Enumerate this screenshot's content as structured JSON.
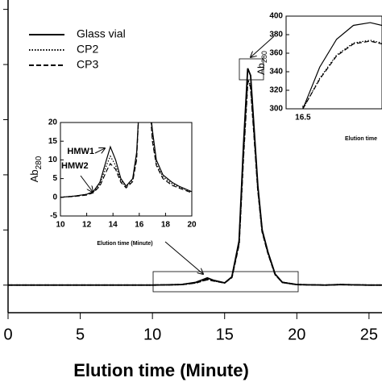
{
  "chart_data": [
    {
      "type": "line",
      "x_label": "Elution time (Minute)",
      "x": [
        0,
        5,
        10,
        12,
        13,
        13.5,
        13.8,
        14.2,
        15,
        15.5,
        16,
        16.3,
        16.6,
        16.8,
        17,
        17.3,
        17.6,
        18,
        18.5,
        19,
        20,
        22,
        23,
        25,
        25.9
      ],
      "series": [
        {
          "name": "Glass vial",
          "color": "#000000",
          "dash": "solid",
          "values": [
            0,
            0,
            0,
            1,
            5,
            10,
            13,
            9,
            4,
            15,
            80,
            250,
            393,
            380,
            300,
            180,
            100,
            60,
            20,
            5,
            1,
            0,
            1,
            0,
            0
          ]
        },
        {
          "name": "CP2",
          "color": "#000000",
          "dash": "dotted",
          "values": [
            0,
            0,
            0,
            1,
            4,
            8,
            11,
            8,
            4,
            14,
            75,
            235,
            372,
            362,
            290,
            175,
            98,
            58,
            19,
            5,
            1,
            0,
            1,
            0,
            0
          ]
        },
        {
          "name": "CP3",
          "color": "#000000",
          "dash": "dashed",
          "values": [
            0,
            0,
            0,
            1,
            4,
            8,
            10,
            8,
            4,
            14,
            74,
            232,
            370,
            360,
            288,
            174,
            97,
            58,
            19,
            5,
            1,
            0,
            1,
            0,
            0
          ]
        }
      ],
      "xlim": [
        0,
        25.9
      ],
      "ylim": [
        -50,
        517
      ],
      "xticks": [
        0,
        5,
        10,
        15,
        20,
        25
      ],
      "yticks": [
        0,
        100,
        200,
        300,
        400,
        500
      ],
      "ytick_labels": false,
      "legend": "top-left"
    },
    {
      "type": "line",
      "x_label": "Elution time (Minute)",
      "y_label": "Ab",
      "y_label_sub": "280",
      "annotations": [
        "HMW1",
        "HMW2"
      ],
      "x": [
        10,
        11,
        12,
        12.5,
        13,
        13.5,
        13.8,
        14.2,
        14.6,
        15,
        15.5,
        15.8,
        16,
        16.8,
        17,
        17.3,
        17.8,
        18.5,
        19,
        20
      ],
      "series": [
        {
          "color": "#000000",
          "dash": "solid",
          "values": [
            0,
            0.3,
            0.8,
            1.5,
            4,
            10,
            13.5,
            10,
            5,
            3,
            5,
            12,
            25,
            25,
            18,
            10,
            6,
            4,
            3,
            1.5
          ]
        },
        {
          "color": "#000000",
          "dash": "dotted",
          "values": [
            0,
            0.3,
            0.8,
            1.4,
            3.5,
            8.5,
            11,
            8.5,
            4.5,
            2.8,
            4.6,
            11,
            25,
            25,
            16,
            9,
            5.5,
            3.6,
            2.8,
            1.4
          ]
        },
        {
          "color": "#000000",
          "dash": "dashed",
          "values": [
            0,
            0.2,
            0.6,
            1.2,
            3,
            7,
            9,
            7.5,
            4,
            2.5,
            4.2,
            10,
            25,
            25,
            15,
            8.5,
            5,
            3.2,
            2.5,
            1.2
          ]
        }
      ],
      "xlim": [
        10,
        20
      ],
      "ylim": [
        -5,
        20
      ],
      "xticks": [
        10,
        12,
        14,
        16,
        18,
        20
      ],
      "yticks": [
        -5,
        0,
        5,
        10,
        15,
        20
      ]
    },
    {
      "type": "line",
      "x_label": "Elution time",
      "y_label": "Ab",
      "y_label_sub": "280",
      "x": [
        16.5,
        16.6,
        16.7,
        16.8,
        16.9,
        16.97
      ],
      "series": [
        {
          "color": "#000000",
          "dash": "solid",
          "values": [
            300,
            345,
            375,
            390,
            393,
            390
          ]
        },
        {
          "color": "#000000",
          "dash": "dotted",
          "values": [
            300,
            333,
            358,
            371,
            374,
            371
          ]
        },
        {
          "color": "#000000",
          "dash": "dashed",
          "values": [
            300,
            332,
            357,
            370,
            373,
            370
          ]
        }
      ],
      "xlim": [
        16.4,
        16.97
      ],
      "ylim": [
        300,
        400
      ],
      "xticks": [
        16.5
      ],
      "yticks": [
        300,
        320,
        340,
        360,
        380,
        400
      ]
    }
  ]
}
